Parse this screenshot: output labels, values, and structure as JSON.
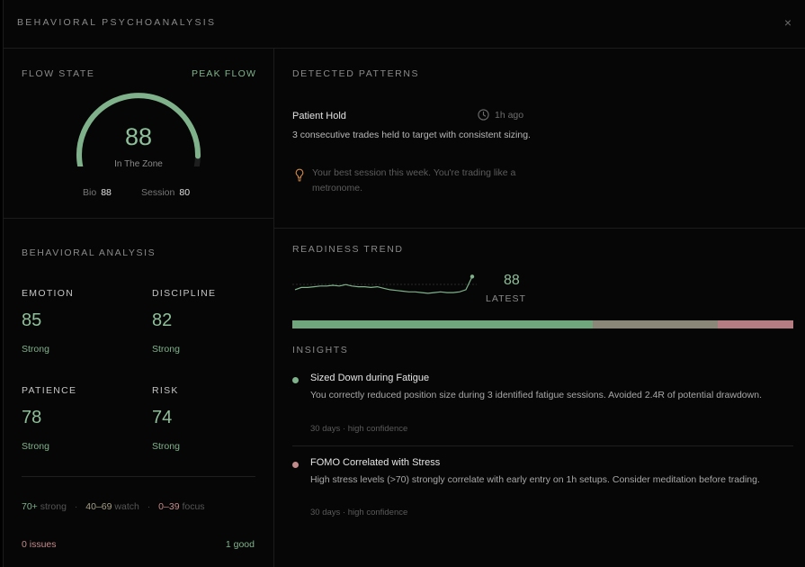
{
  "header": {
    "title": "BEHAVIORAL PSYCHOANALYSIS",
    "close_label": "×"
  },
  "flow": {
    "label": "FLOW STATE",
    "status": "PEAK FLOW",
    "score": "88",
    "score_fraction": 0.88,
    "caption": "In The Zone",
    "bio_label": "Bio",
    "bio_value": "88",
    "session_label": "Session",
    "session_value": "80"
  },
  "analysis": {
    "label": "BEHAVIORAL ANALYSIS",
    "metrics": [
      {
        "name": "EMOTION",
        "value": "85",
        "status": "Strong"
      },
      {
        "name": "DISCIPLINE",
        "value": "82",
        "status": "Strong"
      },
      {
        "name": "PATIENCE",
        "value": "78",
        "status": "Strong"
      },
      {
        "name": "RISK",
        "value": "74",
        "status": "Strong"
      }
    ],
    "legend": {
      "strong_range": "70+",
      "strong_label": "strong",
      "watch_range": "40–69",
      "watch_label": "watch",
      "focus_range": "0–39",
      "focus_label": "focus",
      "separator": "·"
    },
    "issues": "0 issues",
    "good": "1 good"
  },
  "patterns": {
    "label": "DETECTED PATTERNS",
    "items": [
      {
        "title": "Patient Hold",
        "time": "1h ago",
        "description": "3 consecutive trades held to target with consistent sizing.",
        "tip": "Your best session this week. You're trading like a metronome."
      }
    ]
  },
  "readiness": {
    "label": "READINESS TREND",
    "latest_value": "88",
    "latest_label": "LATEST",
    "series": [
      70,
      73,
      73,
      74,
      75,
      75,
      76,
      75,
      77,
      75,
      74,
      74,
      73,
      74,
      72,
      70,
      69,
      68,
      67,
      67,
      66,
      65,
      66,
      67,
      66,
      66,
      67,
      70,
      88
    ],
    "distribution": [
      0.6,
      0.25,
      0.15
    ],
    "colors": [
      "#6fa67b",
      "#8a8778",
      "#b57d82"
    ]
  },
  "insights": {
    "label": "INSIGHTS",
    "items": [
      {
        "title": "Sized Down during Fatigue",
        "body": "You correctly reduced position size during 3 identified fatigue sessions. Avoided 2.4R of potential drawdown.",
        "meta": "30 days · high confidence",
        "color": "#7fb28b"
      },
      {
        "title": "FOMO Correlated with Stress",
        "body": "High stress levels (>70) strongly correlate with early entry on 1h setups. Consider meditation before trading.",
        "meta": "30 days · high confidence",
        "color": "#c28a8a"
      }
    ]
  }
}
